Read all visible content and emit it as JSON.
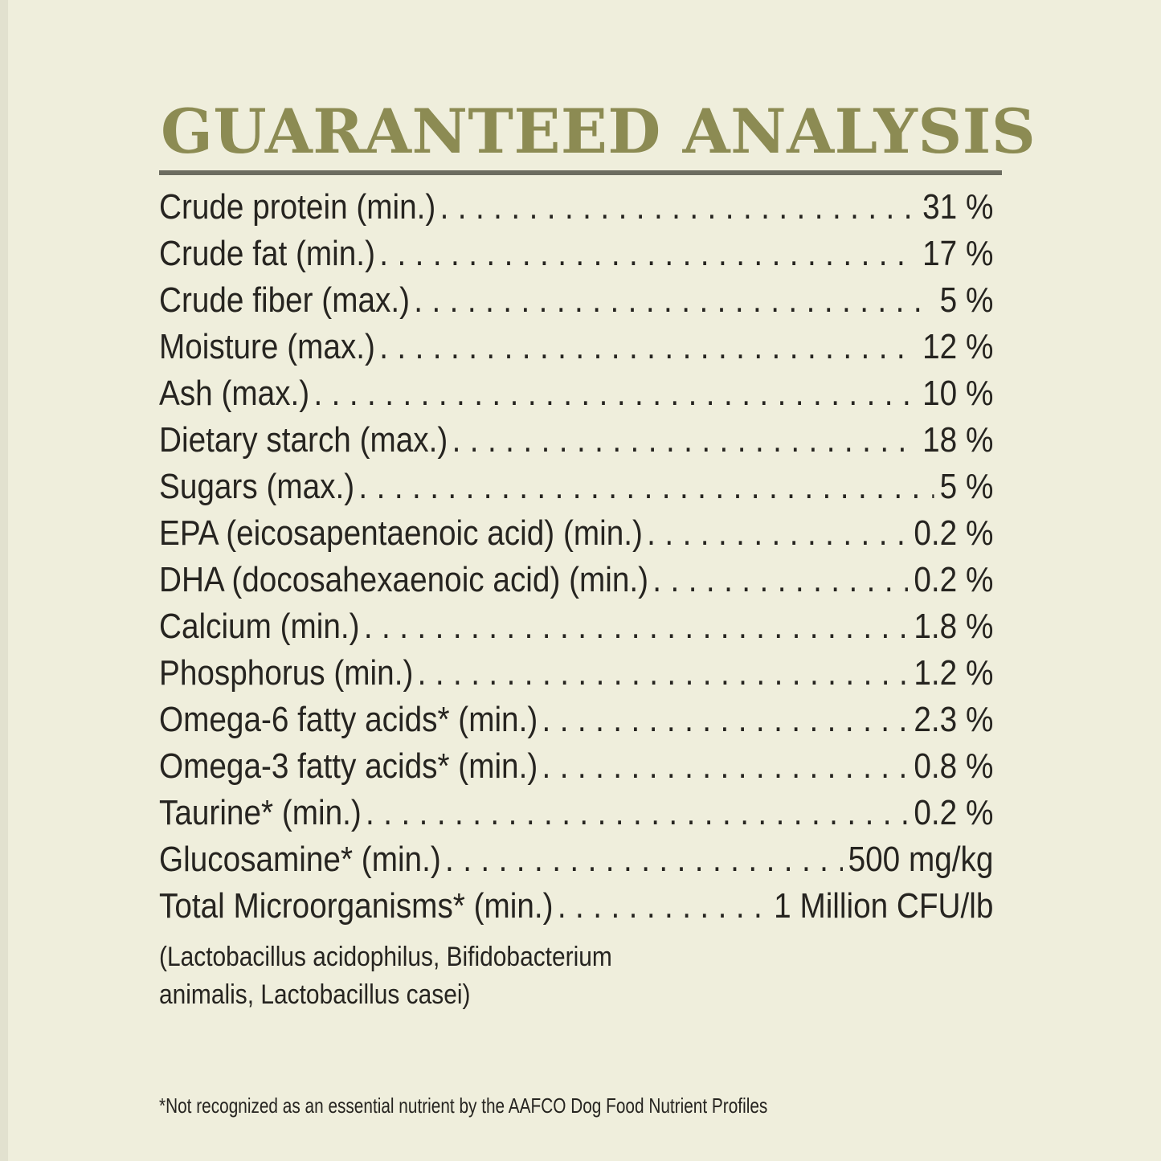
{
  "theme": {
    "background": "#EFEEDC",
    "title": "#8C8B53",
    "rule": "#6C6C60",
    "text": "#262420"
  },
  "header": {
    "title": "GUARANTEED ANALYSIS"
  },
  "analysis": {
    "rows": [
      {
        "label": "Crude protein (min.)",
        "value": "31 %"
      },
      {
        "label": "Crude fat (min.)",
        "value": "17 %"
      },
      {
        "label": "Crude fiber (max.)",
        "value": "5 %"
      },
      {
        "label": "Moisture (max.)",
        "value": "12 %"
      },
      {
        "label": "Ash (max.)",
        "value": "10 %"
      },
      {
        "label": "Dietary starch (max.)",
        "value": "18 %"
      },
      {
        "label": "Sugars (max.)",
        "value": "5 %"
      },
      {
        "label": "EPA (eicosapentaenoic acid) (min.)",
        "value": "0.2 %"
      },
      {
        "label": "DHA (docosahexaenoic acid) (min.)",
        "value": "0.2 %"
      },
      {
        "label": "Calcium (min.)",
        "value": "1.8 %"
      },
      {
        "label": "Phosphorus (min.)",
        "value": "1.2 %"
      },
      {
        "label": "Omega-6 fatty acids* (min.)",
        "value": "2.3 %"
      },
      {
        "label": "Omega-3 fatty acids* (min.)",
        "value": "0.8 %"
      },
      {
        "label": "Taurine* (min.)",
        "value": "0.2 %"
      },
      {
        "label": "Glucosamine* (min.)",
        "value": "500 mg/kg"
      },
      {
        "label": "Total Microorganisms* (min.)",
        "value": "1 Million CFU/lb"
      }
    ],
    "note_lines": [
      "(Lactobacillus acidophilus, Bifidobacterium",
      "animalis, Lactobacillus casei)"
    ],
    "footnote": "*Not recognized as an essential nutrient by the AAFCO Dog Food Nutrient Profiles"
  }
}
